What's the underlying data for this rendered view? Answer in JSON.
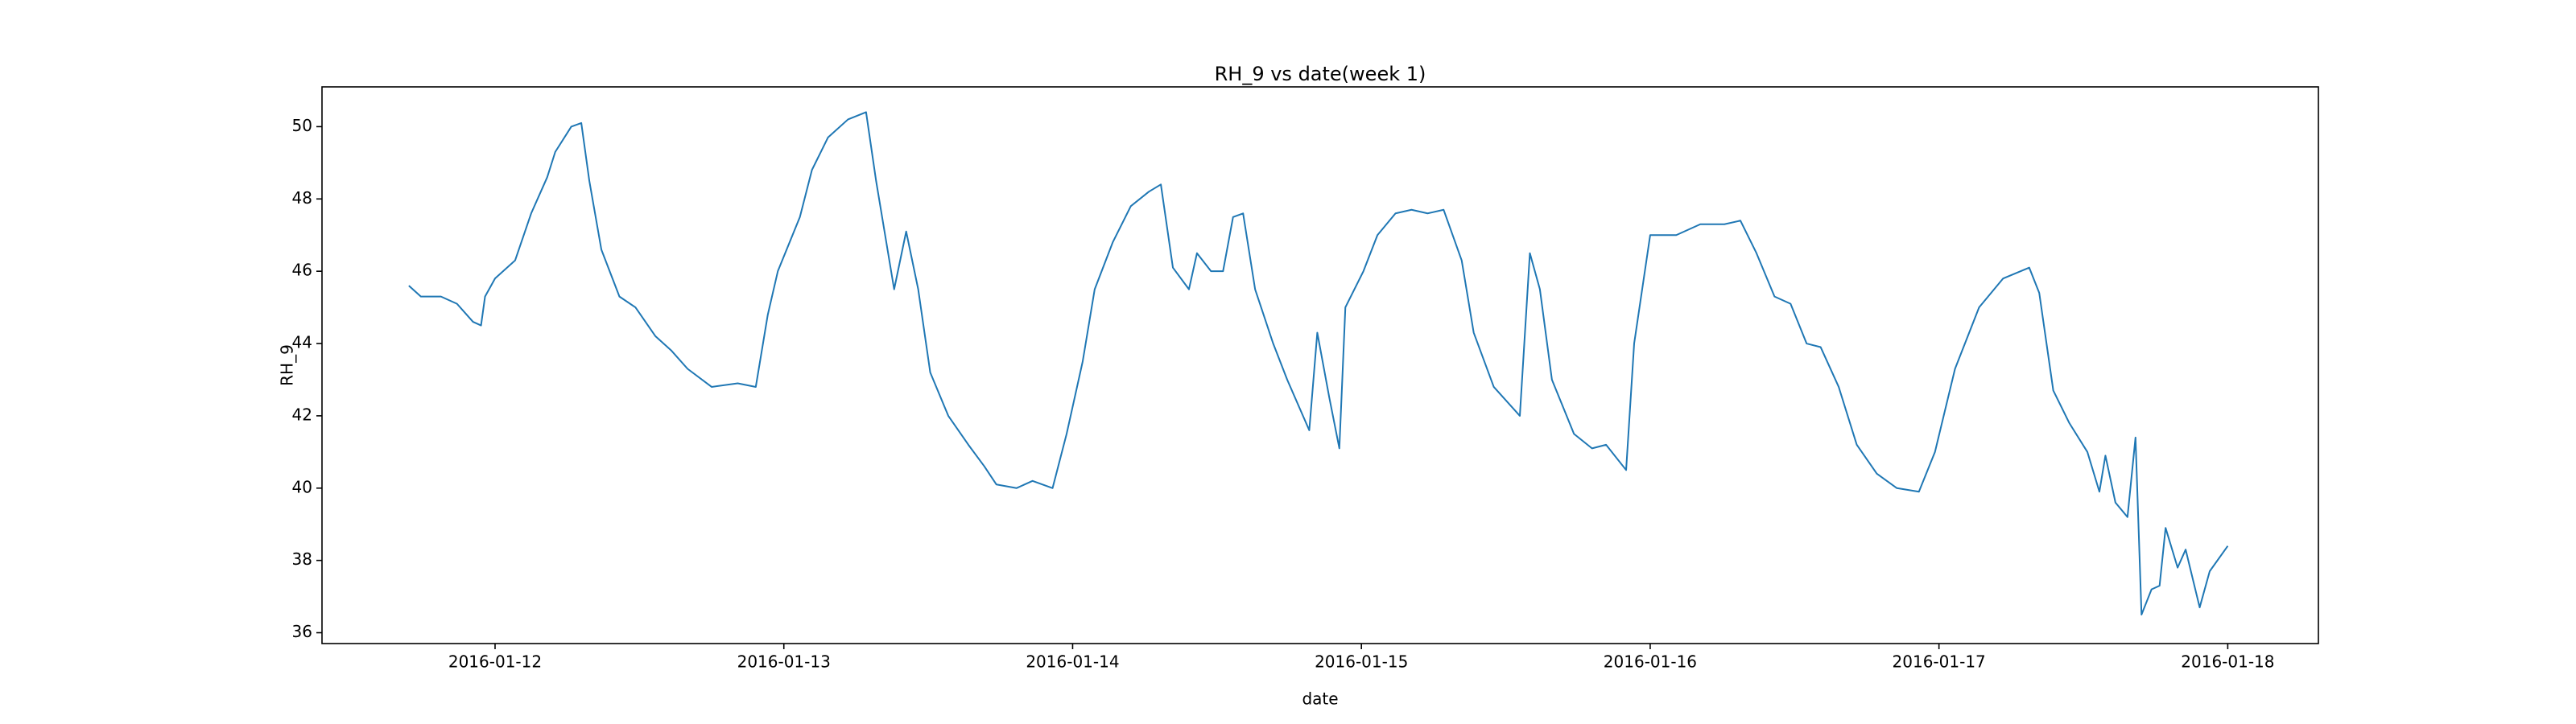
{
  "chart_data": {
    "type": "line",
    "title": "RH_9 vs date(week 1)",
    "x_label": "date",
    "y_label": "RH_9",
    "x": [
      "2016-01-11T16:50",
      "2016-01-11T17:50",
      "2016-01-11T19:30",
      "2016-01-11T20:50",
      "2016-01-11T22:10",
      "2016-01-11T22:50",
      "2016-01-11T23:10",
      "2016-01-12T00:00",
      "2016-01-12T01:40",
      "2016-01-12T03:00",
      "2016-01-12T04:20",
      "2016-01-12T05:00",
      "2016-01-12T06:20",
      "2016-01-12T07:10",
      "2016-01-12T07:50",
      "2016-01-12T08:50",
      "2016-01-12T10:20",
      "2016-01-12T11:40",
      "2016-01-12T13:20",
      "2016-01-12T14:40",
      "2016-01-12T16:00",
      "2016-01-12T18:00",
      "2016-01-12T20:10",
      "2016-01-12T21:40",
      "2016-01-12T22:40",
      "2016-01-12T23:30",
      "2016-01-13T01:20",
      "2016-01-13T02:20",
      "2016-01-13T03:40",
      "2016-01-13T05:20",
      "2016-01-13T06:50",
      "2016-01-13T07:40",
      "2016-01-13T09:10",
      "2016-01-13T10:10",
      "2016-01-13T11:10",
      "2016-01-13T12:10",
      "2016-01-13T13:40",
      "2016-01-13T15:20",
      "2016-01-13T16:40",
      "2016-01-13T17:40",
      "2016-01-13T19:20",
      "2016-01-13T20:40",
      "2016-01-13T22:20",
      "2016-01-13T23:30",
      "2016-01-14T00:50",
      "2016-01-14T01:50",
      "2016-01-14T03:20",
      "2016-01-14T04:50",
      "2016-01-14T06:20",
      "2016-01-14T07:20",
      "2016-01-14T08:20",
      "2016-01-14T09:40",
      "2016-01-14T10:20",
      "2016-01-14T11:30",
      "2016-01-14T12:30",
      "2016-01-14T13:20",
      "2016-01-14T14:10",
      "2016-01-14T15:10",
      "2016-01-14T16:40",
      "2016-01-14T17:50",
      "2016-01-14T19:40",
      "2016-01-14T20:20",
      "2016-01-14T21:20",
      "2016-01-14T22:10",
      "2016-01-14T22:40",
      "2016-01-15T00:10",
      "2016-01-15T01:20",
      "2016-01-15T02:50",
      "2016-01-15T04:10",
      "2016-01-15T05:30",
      "2016-01-15T06:50",
      "2016-01-15T08:20",
      "2016-01-15T09:20",
      "2016-01-15T11:00",
      "2016-01-15T13:10",
      "2016-01-15T14:00",
      "2016-01-15T14:50",
      "2016-01-15T15:50",
      "2016-01-15T17:40",
      "2016-01-15T19:10",
      "2016-01-15T20:20",
      "2016-01-15T22:00",
      "2016-01-15T22:40",
      "2016-01-16T00:00",
      "2016-01-16T02:10",
      "2016-01-16T04:10",
      "2016-01-16T06:10",
      "2016-01-16T07:30",
      "2016-01-16T08:50",
      "2016-01-16T10:20",
      "2016-01-16T11:40",
      "2016-01-16T13:00",
      "2016-01-16T14:10",
      "2016-01-16T15:40",
      "2016-01-16T17:10",
      "2016-01-16T18:50",
      "2016-01-16T20:30",
      "2016-01-16T22:20",
      "2016-01-16T23:40",
      "2016-01-17T01:20",
      "2016-01-17T03:20",
      "2016-01-17T05:20",
      "2016-01-17T07:30",
      "2016-01-17T08:20",
      "2016-01-17T09:30",
      "2016-01-17T10:50",
      "2016-01-17T12:20",
      "2016-01-17T13:20",
      "2016-01-17T13:50",
      "2016-01-17T14:40",
      "2016-01-17T15:40",
      "2016-01-17T16:20",
      "2016-01-17T16:50",
      "2016-01-17T17:40",
      "2016-01-17T18:20",
      "2016-01-17T18:50",
      "2016-01-17T19:50",
      "2016-01-17T20:30",
      "2016-01-17T21:40",
      "2016-01-17T22:30",
      "2016-01-18T00:00"
    ],
    "series": [
      {
        "name": "RH_9",
        "color": "#1f77b4",
        "values": [
          45.6,
          45.3,
          45.3,
          45.1,
          44.6,
          44.5,
          45.3,
          45.8,
          46.3,
          47.6,
          48.6,
          49.3,
          50.0,
          50.1,
          48.5,
          46.6,
          45.3,
          45.0,
          44.2,
          43.8,
          43.3,
          42.8,
          42.9,
          42.8,
          44.8,
          46.0,
          47.5,
          48.8,
          49.7,
          50.2,
          50.4,
          48.5,
          45.5,
          47.1,
          45.5,
          43.2,
          42.0,
          41.2,
          40.6,
          40.1,
          40.0,
          40.2,
          40.0,
          41.5,
          43.5,
          45.5,
          46.8,
          47.8,
          48.2,
          48.4,
          46.1,
          45.5,
          46.5,
          46.0,
          46.0,
          47.5,
          47.6,
          45.5,
          44.0,
          43.0,
          41.6,
          44.3,
          42.5,
          41.1,
          45.0,
          46.0,
          47.0,
          47.6,
          47.7,
          47.6,
          47.7,
          46.3,
          44.3,
          42.8,
          42.0,
          46.5,
          45.5,
          43.0,
          41.5,
          41.1,
          41.2,
          40.5,
          44.0,
          47.0,
          47.0,
          47.3,
          47.3,
          47.4,
          46.5,
          45.3,
          45.1,
          44.0,
          43.9,
          42.8,
          41.2,
          40.4,
          40.0,
          39.9,
          41.0,
          43.3,
          45.0,
          45.8,
          46.1,
          45.4,
          42.7,
          41.8,
          41.0,
          39.9,
          40.9,
          39.6,
          39.2,
          41.4,
          36.5,
          37.2,
          37.3,
          38.9,
          37.8,
          38.3,
          36.7,
          37.7,
          38.4
        ]
      }
    ],
    "xlim": [
      "2016-01-11T09:37",
      "2016-01-18T07:32"
    ],
    "xticks": [
      "2016-01-12",
      "2016-01-13",
      "2016-01-14",
      "2016-01-15",
      "2016-01-16",
      "2016-01-17",
      "2016-01-18"
    ],
    "ylim": [
      35.7,
      51.1
    ],
    "yticks": [
      36,
      38,
      40,
      42,
      44,
      46,
      48,
      50
    ],
    "grid": false
  }
}
